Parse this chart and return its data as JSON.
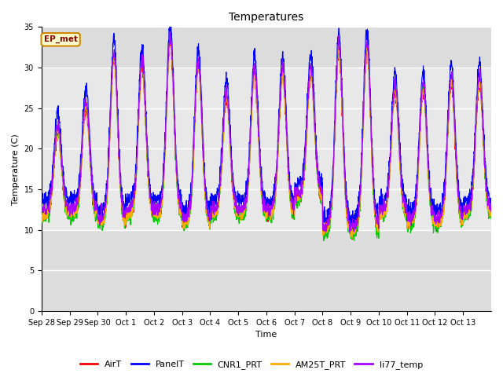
{
  "title": "Temperatures",
  "ylabel": "Temperature (C)",
  "xlabel": "Time",
  "ylim": [
    0,
    35
  ],
  "yticks": [
    0,
    5,
    10,
    15,
    20,
    25,
    30,
    35
  ],
  "colors": {
    "AirT": "#ff0000",
    "PanelT": "#0000ff",
    "CNR1_PRT": "#00cc00",
    "AM25T_PRT": "#ffaa00",
    "li77_temp": "#aa00ff"
  },
  "ep_met_label": "EP_met",
  "plot_bg": "#dcdcdc",
  "fig_bg": "#ffffff",
  "band_color": "#e8e8e8",
  "x_tick_labels": [
    "Sep 28",
    "Sep 29",
    "Sep 30",
    "Oct 1",
    "Oct 2",
    "Oct 3",
    "Oct 4",
    "Oct 5",
    "Oct 6",
    "Oct 7",
    "Oct 8",
    "Oct 9",
    "Oct 10",
    "Oct 11",
    "Oct 12",
    "Oct 13"
  ],
  "n_days": 16,
  "day_peaks": [
    22,
    25,
    31,
    30,
    33,
    30,
    26,
    29,
    29,
    29,
    32,
    32,
    27,
    27,
    28,
    28
  ],
  "day_mins": [
    12,
    12,
    11,
    12,
    12,
    11,
    12,
    12,
    12,
    14,
    10,
    10,
    12,
    11,
    11,
    12
  ],
  "peak_hour": 0.58,
  "sigma": 0.13
}
